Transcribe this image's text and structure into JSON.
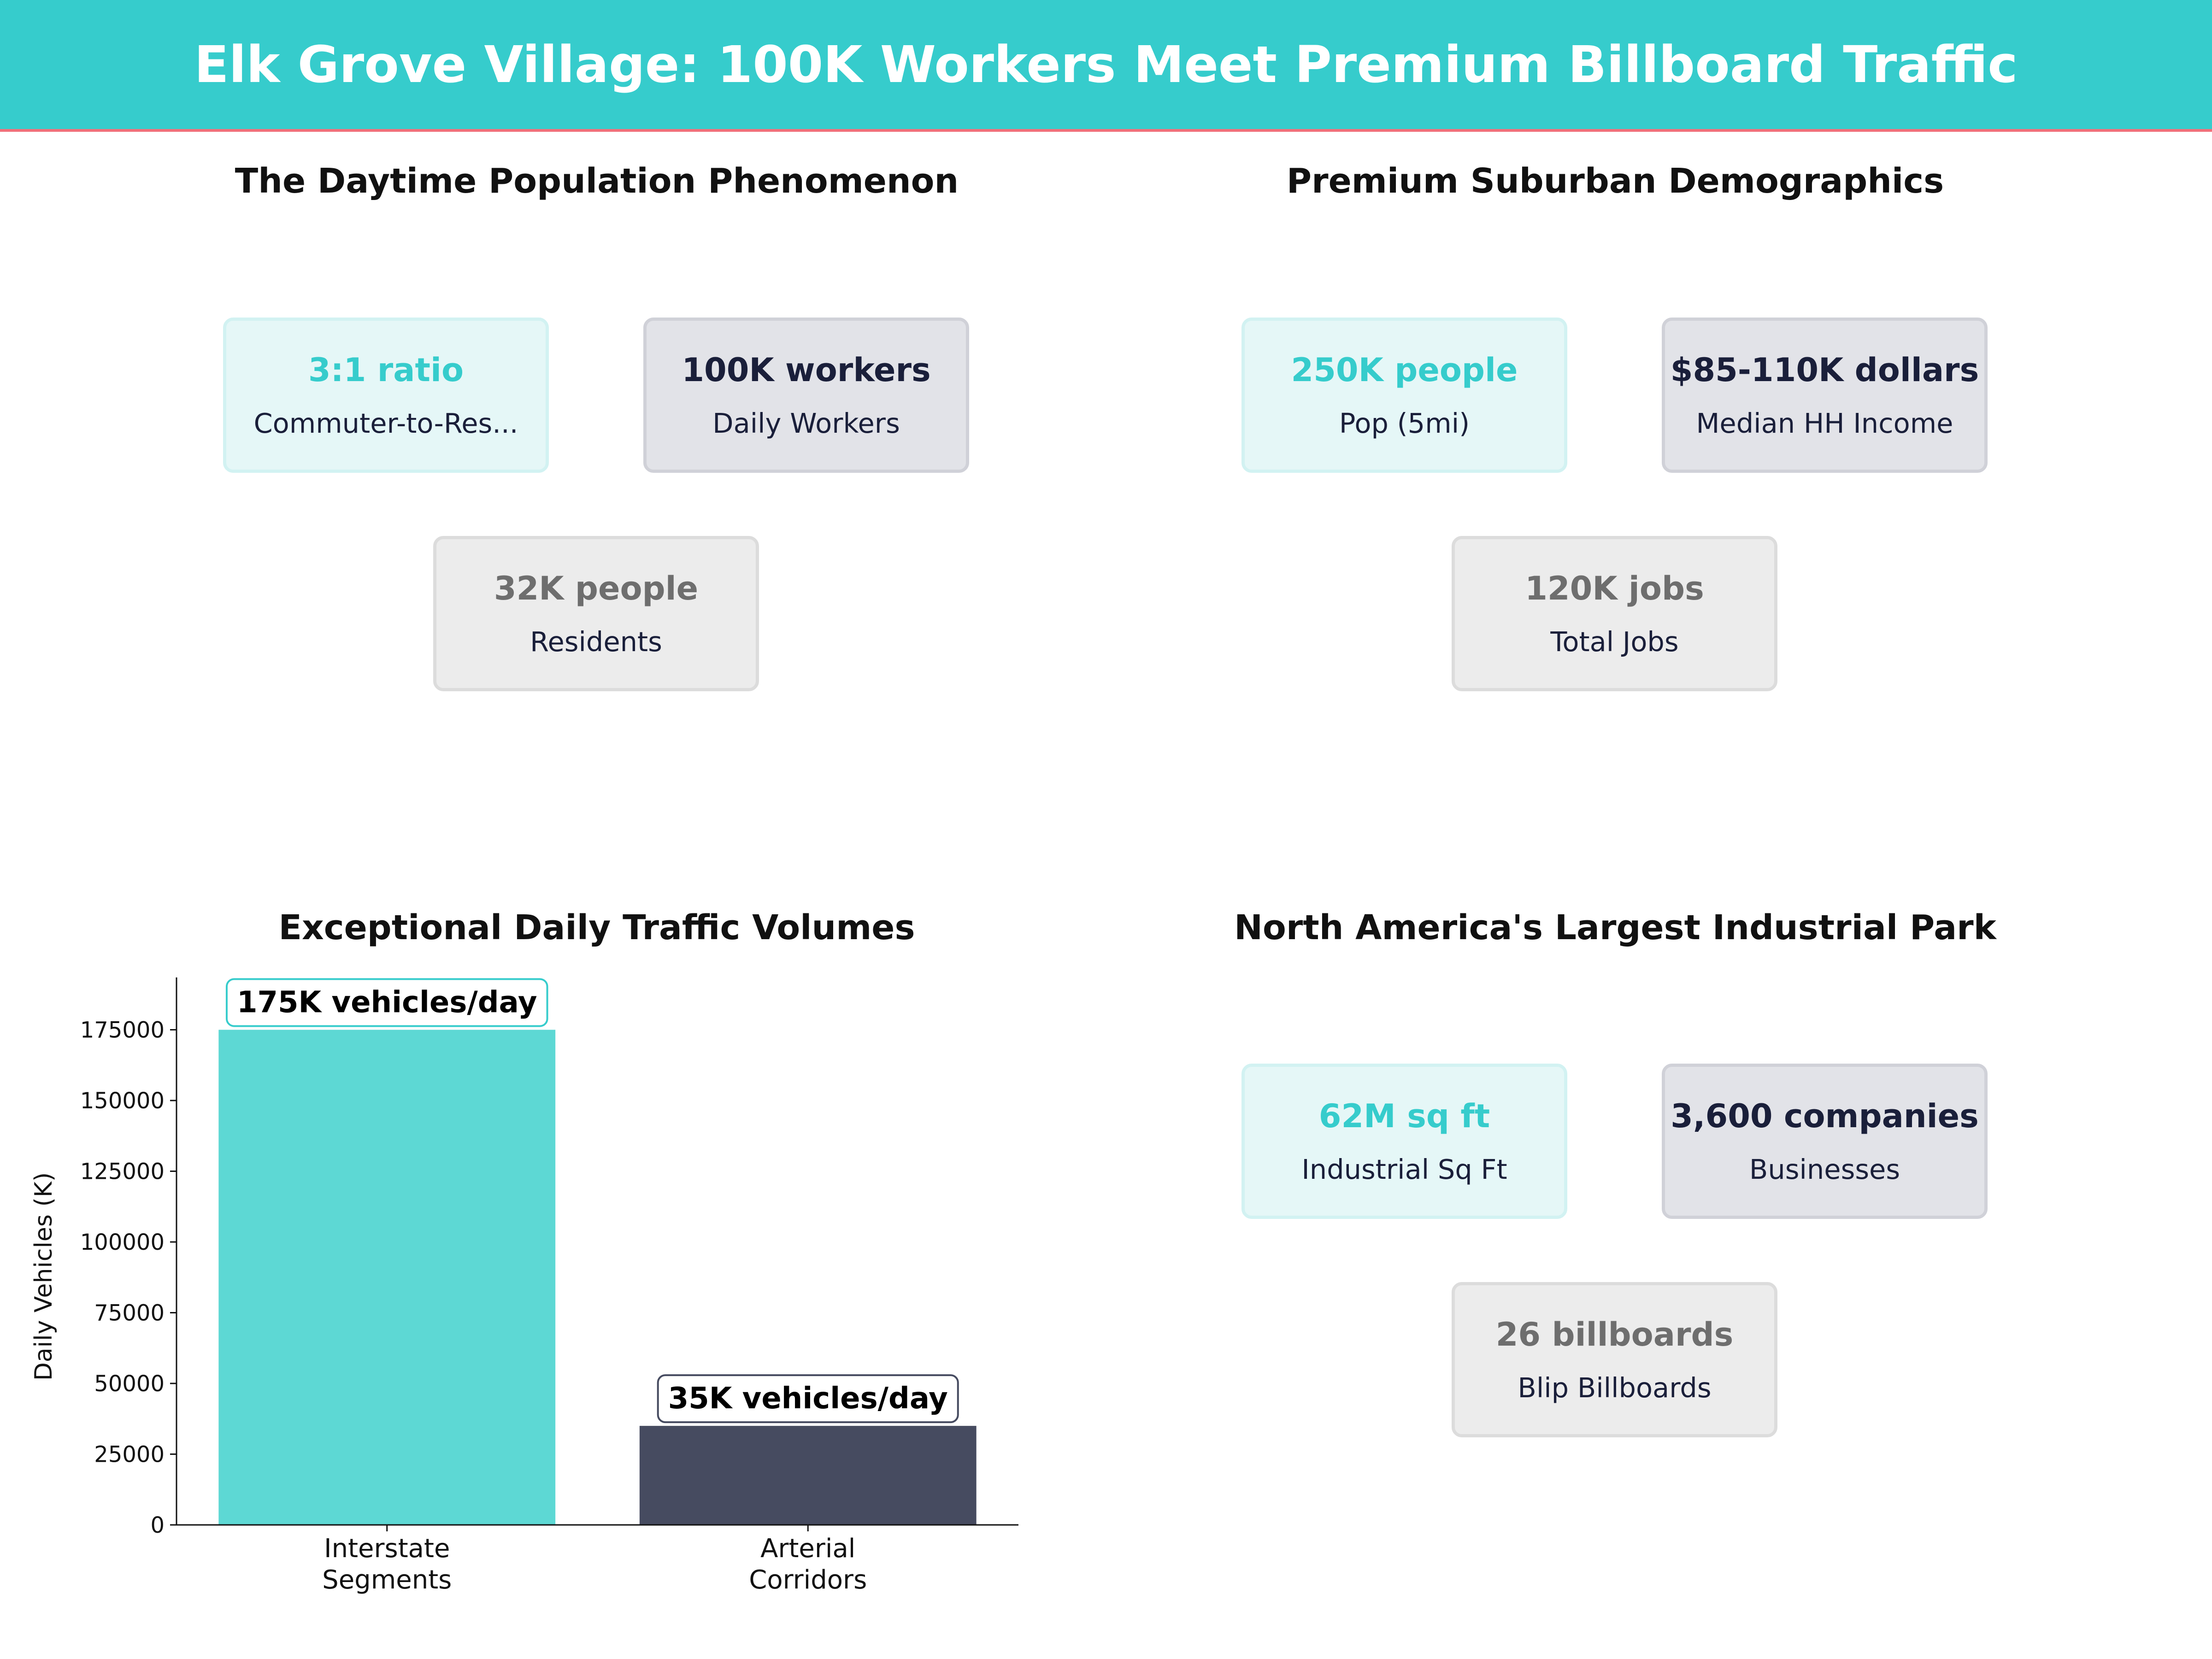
{
  "header": {
    "title": "Elk Grove Village: 100K Workers Meet Premium Billboard Traffic"
  },
  "colors": {
    "accent": "#36cccc",
    "navy": "#1a1f3a",
    "gray": "#6e6e6e",
    "header_underline": "#f0707a",
    "bar_interstate": "#5dd8d4",
    "bar_arterial": "#464b60"
  },
  "panels": {
    "daytime": {
      "title": "The Daytime Population Phenomenon",
      "cards": [
        {
          "value": "3:1 ratio",
          "label": "Commuter-to-Res..."
        },
        {
          "value": "100K workers",
          "label": "Daily Workers"
        },
        {
          "value": "32K people",
          "label": "Residents"
        }
      ]
    },
    "demographics": {
      "title": "Premium Suburban Demographics",
      "cards": [
        {
          "value": "250K people",
          "label": "Pop (5mi)"
        },
        {
          "value": "$85-110K dollars",
          "label": "Median HH Income"
        },
        {
          "value": "120K jobs",
          "label": "Total Jobs"
        }
      ]
    },
    "industrial": {
      "title": "North America's Largest Industrial Park",
      "cards": [
        {
          "value": "62M sq ft",
          "label": "Industrial Sq Ft"
        },
        {
          "value": "3,600 companies",
          "label": "Businesses"
        },
        {
          "value": "26 billboards",
          "label": "Blip Billboards"
        }
      ]
    }
  },
  "chart_data": {
    "type": "bar",
    "title": "Exceptional Daily Traffic Volumes",
    "xlabel": "",
    "ylabel": "Daily Vehicles (K)",
    "categories": [
      "Interstate\nSegments",
      "Arterial\nCorridors"
    ],
    "values": [
      175000,
      35000
    ],
    "data_labels": [
      "175K vehicles/day",
      "35K vehicles/day"
    ],
    "ylim": [
      0,
      193500
    ],
    "yticks": [
      0,
      25000,
      50000,
      75000,
      100000,
      125000,
      150000,
      175000
    ],
    "grid": false
  }
}
